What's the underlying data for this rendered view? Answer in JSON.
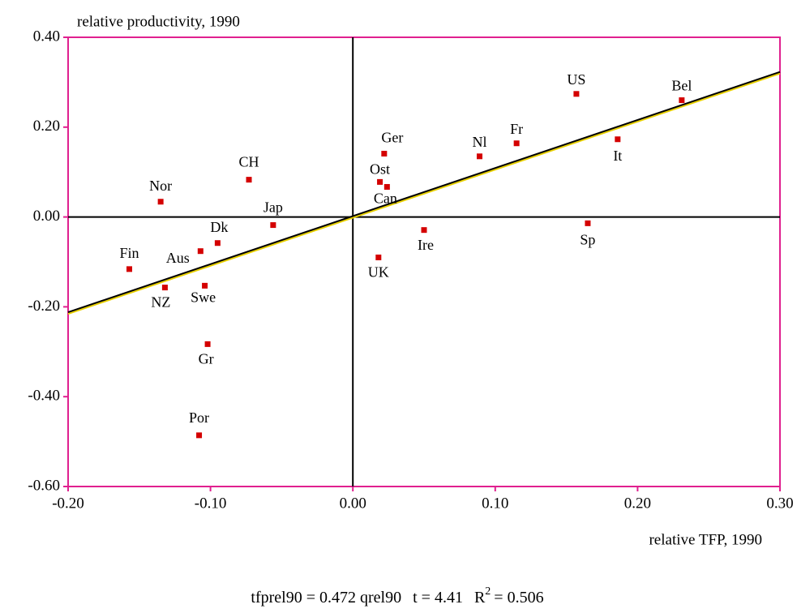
{
  "chart_data": {
    "type": "scatter",
    "ylabel": "relative productivity, 1990",
    "xlabel": "relative TFP, 1990",
    "labels": [
      "US",
      "Bel",
      "It",
      "Fr",
      "Nl",
      "Sp",
      "Ger",
      "Ost",
      "Can",
      "Ire",
      "UK",
      "Jap",
      "CH",
      "Nor",
      "Dk",
      "Aus",
      "Fin",
      "NZ",
      "Swe",
      "Gr",
      "Por"
    ],
    "x": [
      0.157,
      0.231,
      0.186,
      0.115,
      0.089,
      0.165,
      0.022,
      0.019,
      0.024,
      0.05,
      0.018,
      -0.056,
      -0.073,
      -0.135,
      -0.095,
      -0.107,
      -0.157,
      -0.132,
      -0.104,
      -0.102,
      -0.108
    ],
    "values": [
      0.274,
      0.26,
      0.173,
      0.164,
      0.135,
      -0.014,
      0.141,
      0.078,
      0.067,
      -0.029,
      -0.09,
      -0.018,
      0.083,
      0.034,
      -0.058,
      -0.076,
      -0.116,
      -0.157,
      -0.153,
      -0.283,
      -0.486
    ],
    "color": "#d40000",
    "fit_line": {
      "x": [
        -0.2,
        0.3
      ],
      "y": [
        -0.212,
        0.323
      ],
      "color": "#000000",
      "shadow_color": "#e8d000"
    },
    "frame_color": "#e0208f",
    "xlim": [
      -0.2,
      0.3
    ],
    "ylim": [
      -0.6,
      0.4
    ],
    "xticks": [
      {
        "value": -0.2,
        "label": "-0.20"
      },
      {
        "value": -0.1,
        "label": "-0.10"
      },
      {
        "value": 0,
        "label": "0.00"
      },
      {
        "value": 0.1,
        "label": "0.10"
      },
      {
        "value": 0.2,
        "label": "0.20"
      },
      {
        "value": 0.3,
        "label": "0.30"
      }
    ],
    "yticks": [
      {
        "value": -0.6,
        "label": "-0.60"
      },
      {
        "value": -0.4,
        "label": "-0.40"
      },
      {
        "value": -0.2,
        "label": "-0.20"
      },
      {
        "value": 0,
        "label": "0.00"
      },
      {
        "value": 0.2,
        "label": "0.20"
      },
      {
        "value": 0.4,
        "label": "0.40"
      }
    ],
    "equation": {
      "main": "tfprel90 = 0.472 qrel90",
      "t": "t = 4.41",
      "r": "R",
      "sup": "2",
      "r2": "=  0.506"
    }
  }
}
